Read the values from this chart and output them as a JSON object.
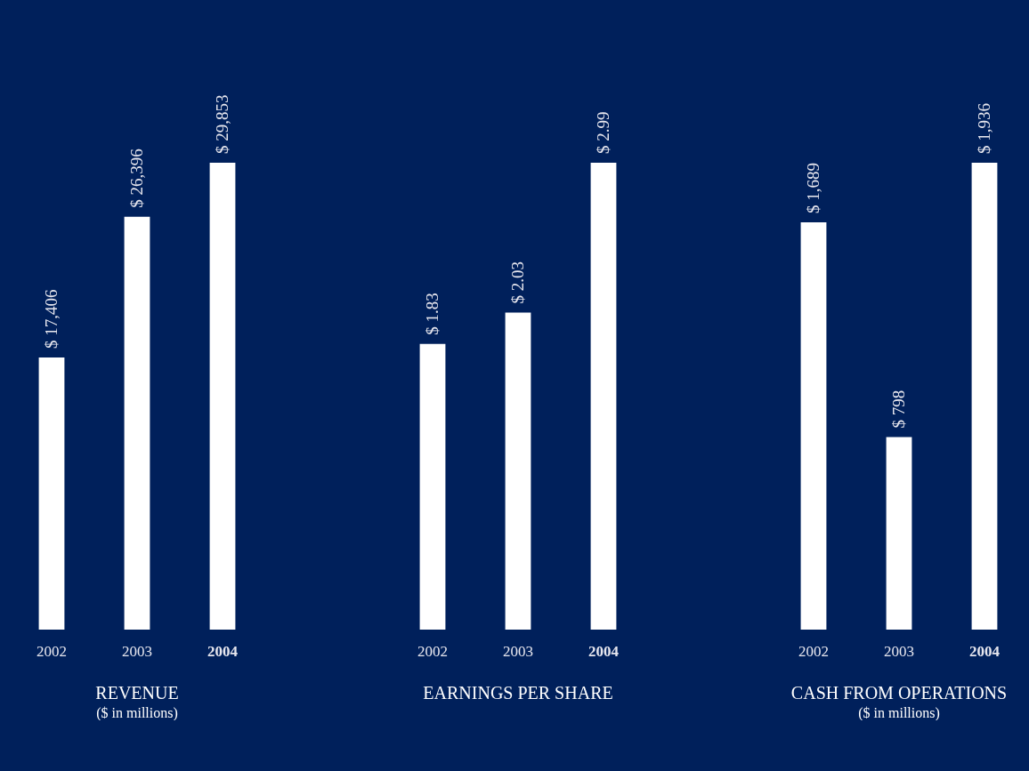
{
  "chart_data": [
    {
      "type": "bar",
      "title": "REVENUE",
      "subtitle": "($ in millions)",
      "categories": [
        "2002",
        "2003",
        "2004"
      ],
      "values": [
        17406,
        26396,
        29853
      ],
      "value_labels": [
        "$ 17,406",
        "$ 26,396",
        "$ 29,853"
      ],
      "color": "#ffffff"
    },
    {
      "type": "bar",
      "title": "EARNINGS PER SHARE",
      "categories": [
        "2002",
        "2003",
        "2004"
      ],
      "values": [
        1.83,
        2.03,
        2.99
      ],
      "value_labels": [
        "$ 1.83",
        "$ 2.03",
        "$ 2.99"
      ],
      "color": "#ffffff"
    },
    {
      "type": "bar",
      "title": "CASH FROM OPERATIONS",
      "subtitle": "($ in millions)",
      "categories": [
        "2002",
        "2003",
        "2004"
      ],
      "values": [
        1689,
        798,
        1936
      ],
      "value_labels": [
        "$ 1,689",
        "$ 798",
        "$ 1,936"
      ],
      "color": "#ffffff"
    }
  ]
}
